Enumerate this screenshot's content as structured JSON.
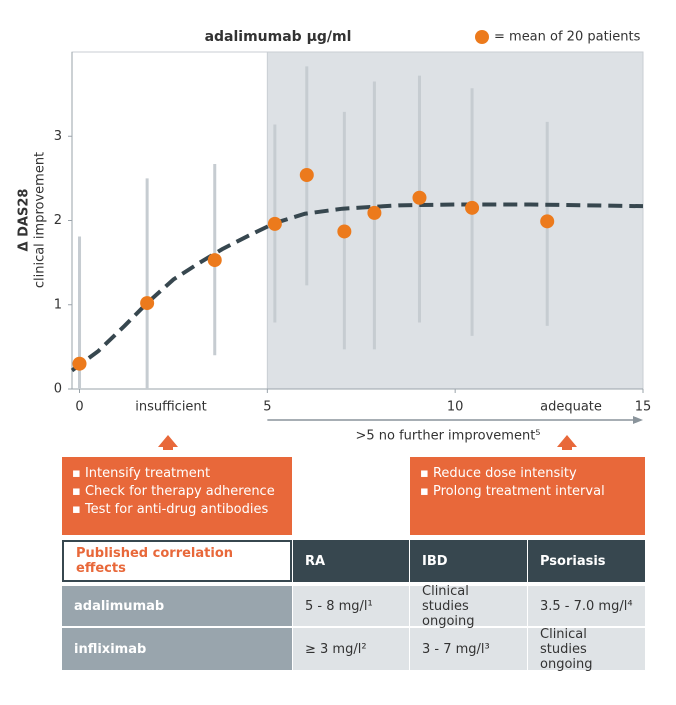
{
  "chart_data": {
    "type": "scatter",
    "title": "adalimumab μg/ml",
    "ylabel": "Δ DAS28",
    "ylabel_sub": "clinical improvement",
    "xlim": [
      -0.2,
      15
    ],
    "ylim": [
      0,
      4
    ],
    "xticks": [
      0,
      5,
      10,
      15
    ],
    "yticks": [
      0,
      1,
      2,
      3
    ],
    "shade_xlim": [
      5,
      15
    ],
    "shade_color": "#dde1e5",
    "zone_labels": [
      "insufficient",
      "adequate"
    ],
    "arrow_note": ">5 no further improvement⁵",
    "legend": "top-right",
    "series": [
      {
        "name": "= mean of 20 patients",
        "color": "#ec7a1c",
        "x": [
          0,
          1.8,
          3.6,
          5.2,
          6.05,
          7.05,
          7.85,
          9.05,
          10.45,
          12.45
        ],
        "values": [
          0.3,
          1.02,
          1.53,
          1.96,
          2.54,
          1.87,
          2.09,
          2.27,
          2.15,
          1.99
        ],
        "low": [
          0,
          0,
          0.4,
          0.79,
          1.23,
          0.47,
          0.47,
          0.79,
          0.63,
          0.75
        ],
        "high": [
          1.81,
          2.5,
          2.67,
          3.14,
          3.83,
          3.29,
          3.65,
          3.72,
          3.57,
          3.17
        ],
        "error_color": "#c6ccd1"
      }
    ],
    "fit": {
      "color": "#37474f",
      "x": [
        -0.2,
        0.5,
        1.2,
        1.8,
        2.5,
        3.2,
        3.8,
        4.5,
        5.2,
        6,
        7,
        8.5,
        10,
        12,
        15
      ],
      "y": [
        0.22,
        0.45,
        0.75,
        1.02,
        1.3,
        1.5,
        1.66,
        1.82,
        1.97,
        2.08,
        2.14,
        2.18,
        2.19,
        2.19,
        2.17
      ]
    }
  },
  "boxes": [
    {
      "items": [
        "Intensify treatment",
        "Check for therapy adherence",
        "Test for anti-drug antibodies"
      ]
    },
    {
      "items": [
        "Reduce dose intensity",
        "Prolong treatment interval"
      ]
    }
  ],
  "table": {
    "header": [
      "Published correlation effects",
      "RA",
      "IBD",
      "Psoriasis"
    ],
    "rows": [
      [
        "adalimumab",
        "5 - 8 mg/l¹",
        "Clinical studies ongoing",
        "3.5 - 7.0 mg/l⁴"
      ],
      [
        "infliximab",
        "≥ 3 mg/l²",
        "3 - 7 mg/l³",
        "Clinical studies ongoing"
      ]
    ]
  }
}
